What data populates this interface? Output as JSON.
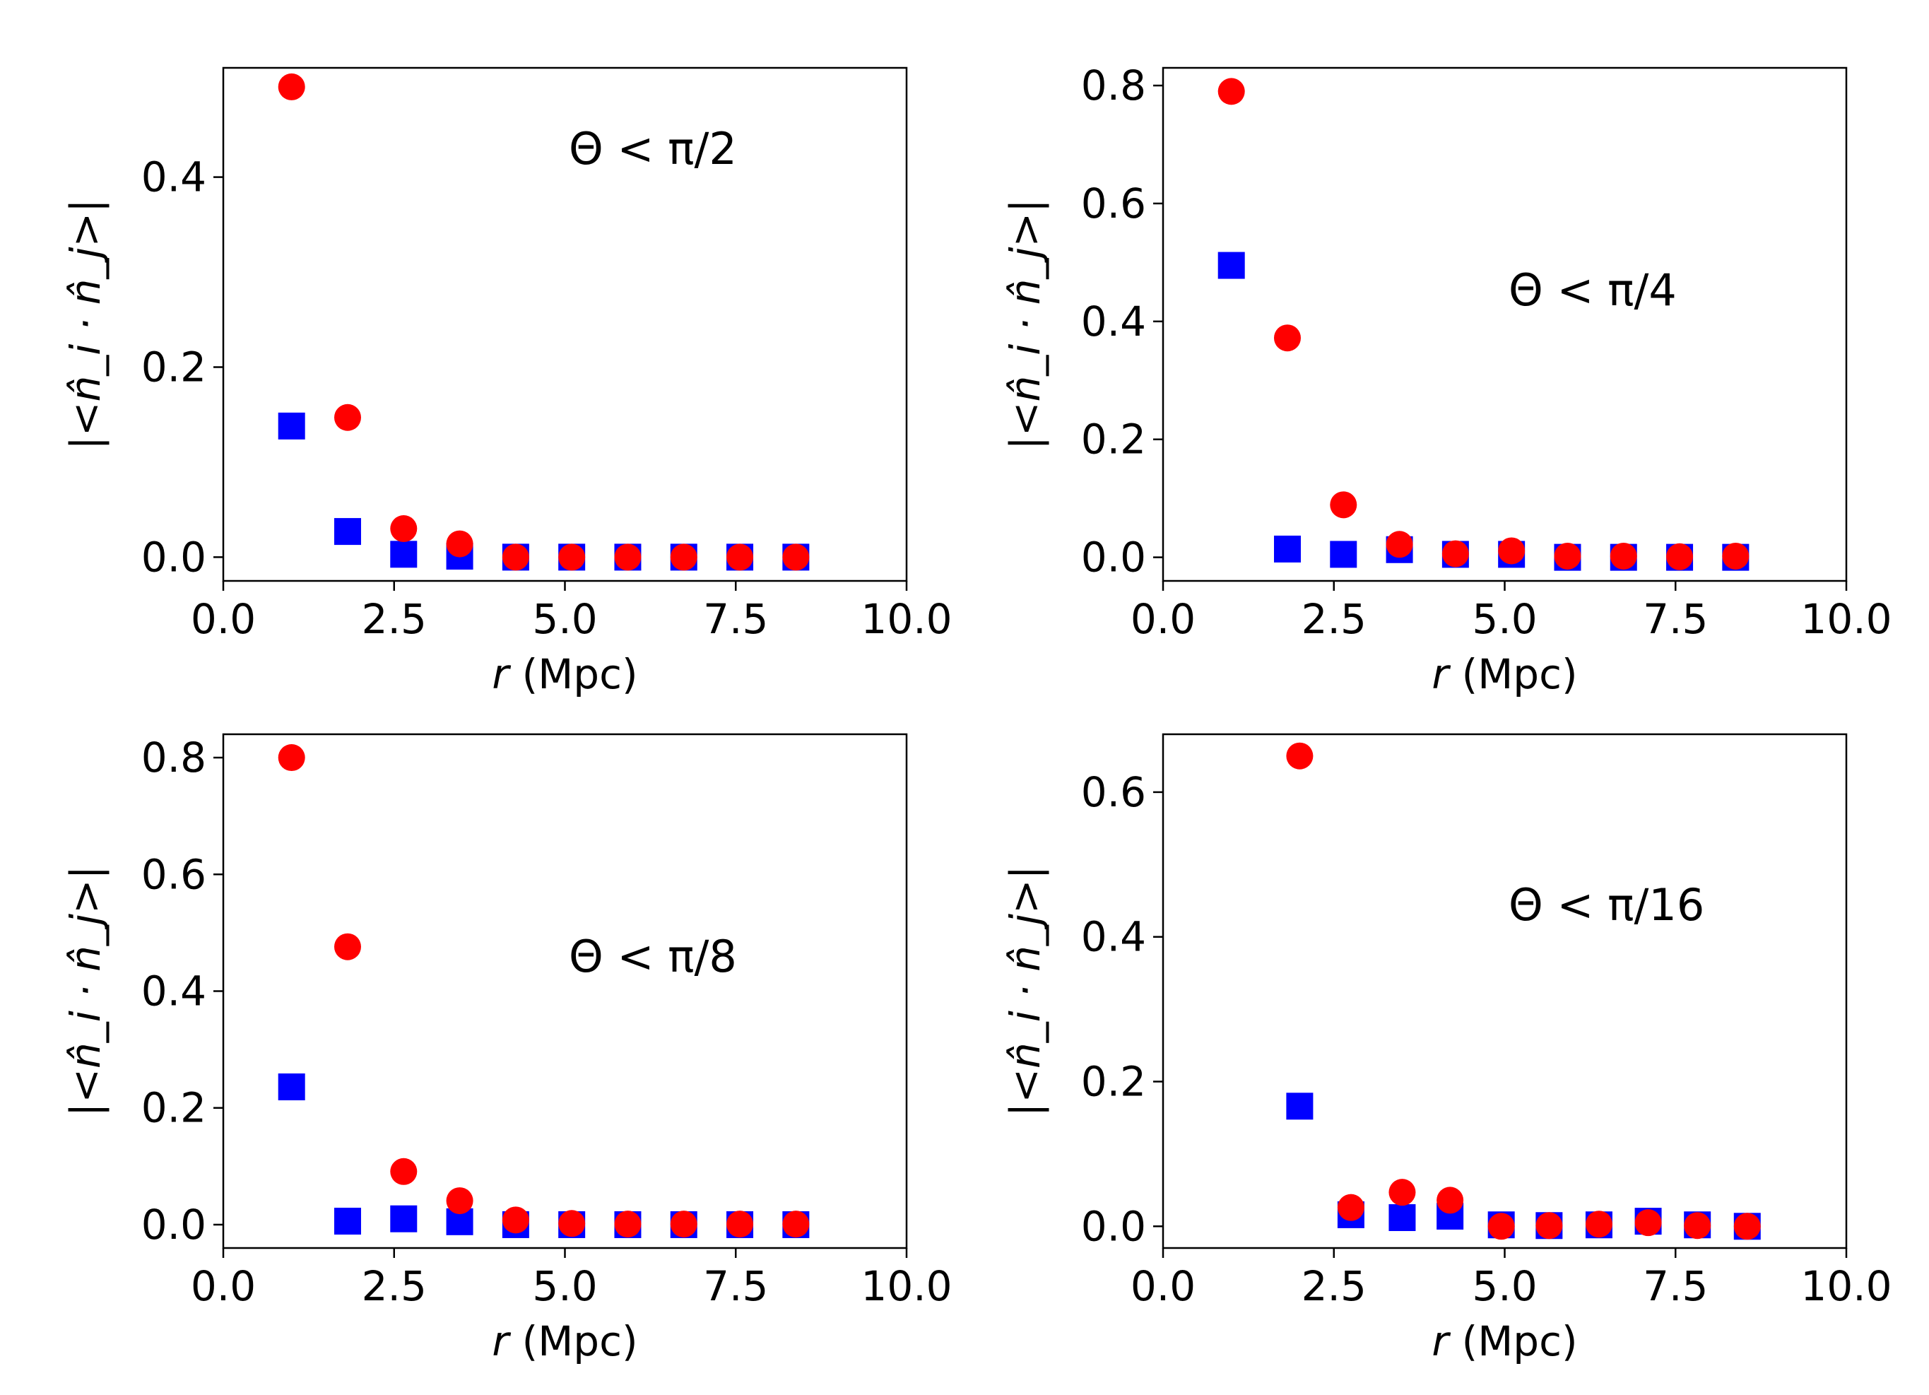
{
  "chart_data": [
    {
      "type": "scatter",
      "annotation": "Θ < π/2",
      "xlabel_var": "r",
      "xlabel_unit": " (Mpc)",
      "ylabel": "|<n̂_i · n̂_j>|",
      "xlim": [
        0,
        10
      ],
      "ylim": [
        -0.025,
        0.515
      ],
      "xticks": [
        "0.0",
        "2.5",
        "5.0",
        "7.5",
        "10.0"
      ],
      "yticks": [
        0.0,
        0.2,
        0.4
      ],
      "ytick_labels": [
        "0.0",
        "0.2",
        "0.4"
      ],
      "series": [
        {
          "name": "squares",
          "marker": "square",
          "color": "#0000ff",
          "x": [
            1.0,
            1.82,
            2.64,
            3.46,
            4.28,
            5.1,
            5.92,
            6.74,
            7.56,
            8.38
          ],
          "y": [
            0.138,
            0.027,
            0.003,
            0.001,
            0.0,
            0.0,
            0.0,
            0.0,
            0.0,
            0.0
          ]
        },
        {
          "name": "circles",
          "marker": "circle",
          "color": "#ff0000",
          "x": [
            1.0,
            1.82,
            2.64,
            3.46,
            4.28,
            5.1,
            5.92,
            6.74,
            7.56,
            8.38
          ],
          "y": [
            0.495,
            0.147,
            0.03,
            0.014,
            0.0,
            0.0,
            0.0,
            0.0,
            0.0,
            0.0
          ]
        }
      ]
    },
    {
      "type": "scatter",
      "annotation": "Θ < π/4",
      "xlabel_var": "r",
      "xlabel_unit": " (Mpc)",
      "ylabel": "|<n̂_i · n̂_j>|",
      "xlim": [
        0,
        10
      ],
      "ylim": [
        -0.04,
        0.83
      ],
      "xticks": [
        "0.0",
        "2.5",
        "5.0",
        "7.5",
        "10.0"
      ],
      "yticks": [
        0.0,
        0.2,
        0.4,
        0.6,
        0.8
      ],
      "ytick_labels": [
        "0.0",
        "0.2",
        "0.4",
        "0.6",
        "0.8"
      ],
      "series": [
        {
          "name": "squares",
          "marker": "square",
          "color": "#0000ff",
          "x": [
            1.0,
            1.82,
            2.64,
            3.46,
            4.28,
            5.1,
            5.92,
            6.74,
            7.56,
            8.38
          ],
          "y": [
            0.495,
            0.014,
            0.005,
            0.013,
            0.005,
            0.005,
            0.0,
            0.0,
            0.0,
            0.0
          ]
        },
        {
          "name": "circles",
          "marker": "circle",
          "color": "#ff0000",
          "x": [
            1.0,
            1.82,
            2.64,
            3.46,
            4.28,
            5.1,
            5.92,
            6.74,
            7.56,
            8.38
          ],
          "y": [
            0.79,
            0.372,
            0.089,
            0.022,
            0.006,
            0.011,
            0.002,
            0.002,
            0.001,
            0.002
          ]
        }
      ]
    },
    {
      "type": "scatter",
      "annotation": "Θ < π/8",
      "xlabel_var": "r",
      "xlabel_unit": " (Mpc)",
      "ylabel": "|<n̂_i · n̂_j>|",
      "xlim": [
        0,
        10
      ],
      "ylim": [
        -0.04,
        0.84
      ],
      "xticks": [
        "0.0",
        "2.5",
        "5.0",
        "7.5",
        "10.0"
      ],
      "yticks": [
        0.0,
        0.2,
        0.4,
        0.6,
        0.8
      ],
      "ytick_labels": [
        "0.0",
        "0.2",
        "0.4",
        "0.6",
        "0.8"
      ],
      "series": [
        {
          "name": "squares",
          "marker": "square",
          "color": "#0000ff",
          "x": [
            1.0,
            1.82,
            2.64,
            3.46,
            4.28,
            5.1,
            5.92,
            6.74,
            7.56,
            8.38
          ],
          "y": [
            0.236,
            0.006,
            0.01,
            0.005,
            0.0,
            0.0,
            0.0,
            0.0,
            0.0,
            0.0
          ]
        },
        {
          "name": "circles",
          "marker": "circle",
          "color": "#ff0000",
          "x": [
            1.0,
            1.82,
            2.64,
            3.46,
            4.28,
            5.1,
            5.92,
            6.74,
            7.56,
            8.38
          ],
          "y": [
            0.8,
            0.476,
            0.091,
            0.041,
            0.008,
            0.002,
            0.001,
            0.001,
            0.001,
            0.001
          ]
        }
      ]
    },
    {
      "type": "scatter",
      "annotation": "Θ < π/16",
      "xlabel_var": "r",
      "xlabel_unit": " (Mpc)",
      "ylabel": "|<n̂_i · n̂_j>|",
      "xlim": [
        0,
        10
      ],
      "ylim": [
        -0.03,
        0.68
      ],
      "xticks": [
        "0.0",
        "2.5",
        "5.0",
        "7.5",
        "10.0"
      ],
      "yticks": [
        0.0,
        0.2,
        0.4,
        0.6
      ],
      "ytick_labels": [
        "0.0",
        "0.2",
        "0.4",
        "0.6"
      ],
      "series": [
        {
          "name": "squares",
          "marker": "square",
          "color": "#0000ff",
          "x": [
            2.0,
            2.75,
            3.5,
            4.2,
            4.95,
            5.65,
            6.38,
            7.1,
            7.82,
            8.55
          ],
          "y": [
            0.166,
            0.016,
            0.012,
            0.014,
            0.002,
            0.001,
            0.002,
            0.007,
            0.002,
            0.0
          ]
        },
        {
          "name": "circles",
          "marker": "circle",
          "color": "#ff0000",
          "x": [
            2.0,
            2.75,
            3.5,
            4.2,
            4.95,
            5.65,
            6.38,
            7.1,
            7.82,
            8.55
          ],
          "y": [
            0.65,
            0.026,
            0.047,
            0.036,
            0.0,
            0.001,
            0.003,
            0.005,
            0.001,
            0.0
          ]
        }
      ]
    }
  ]
}
